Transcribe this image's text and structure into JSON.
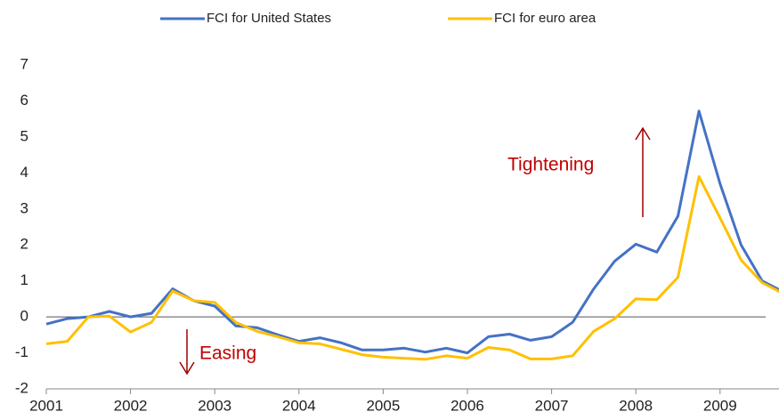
{
  "chart_data": {
    "type": "line",
    "x": [
      2001,
      2001.25,
      2001.5,
      2001.75,
      2002,
      2002.25,
      2002.5,
      2002.75,
      2003,
      2003.25,
      2003.5,
      2003.75,
      2004,
      2004.25,
      2004.5,
      2004.75,
      2005,
      2005.25,
      2005.5,
      2005.75,
      2006,
      2006.25,
      2006.5,
      2006.75,
      2007,
      2007.25,
      2007.5,
      2007.75,
      2008,
      2008.25,
      2008.5,
      2008.75,
      2009,
      2009.25,
      2009.5,
      2009.75
    ],
    "series": [
      {
        "name": "FCI for United States",
        "color": "#4472c4",
        "values": [
          -0.2,
          -0.05,
          0.0,
          0.15,
          0.0,
          0.1,
          0.78,
          0.45,
          0.3,
          -0.25,
          -0.3,
          -0.5,
          -0.68,
          -0.58,
          -0.72,
          -0.92,
          -0.92,
          -0.87,
          -0.98,
          -0.87,
          -1.0,
          -0.55,
          -0.48,
          -0.65,
          -0.55,
          -0.15,
          0.78,
          1.55,
          2.02,
          1.8,
          2.8,
          5.72,
          3.7,
          2.0,
          1.0,
          0.7
        ]
      },
      {
        "name": "FCI for euro area",
        "color": "#ffc000",
        "values": [
          -0.75,
          -0.68,
          0.0,
          0.02,
          -0.42,
          -0.15,
          0.72,
          0.45,
          0.4,
          -0.15,
          -0.4,
          -0.55,
          -0.72,
          -0.75,
          -0.9,
          -1.05,
          -1.12,
          -1.15,
          -1.18,
          -1.08,
          -1.15,
          -0.85,
          -0.92,
          -1.17,
          -1.17,
          -1.08,
          -0.4,
          -0.05,
          0.5,
          0.48,
          1.1,
          3.9,
          2.75,
          1.58,
          0.95,
          0.65
        ]
      }
    ],
    "xlim": [
      2001,
      2009.7
    ],
    "xticks": [
      2001,
      2002,
      2003,
      2004,
      2005,
      2006,
      2007,
      2008,
      2009
    ],
    "ylim": [
      -2,
      7
    ],
    "yticks": [
      -2,
      -1,
      0,
      1,
      2,
      3,
      4,
      5,
      6,
      7
    ],
    "annotations": [
      "Tightening",
      "Easing"
    ],
    "legend": "top"
  }
}
